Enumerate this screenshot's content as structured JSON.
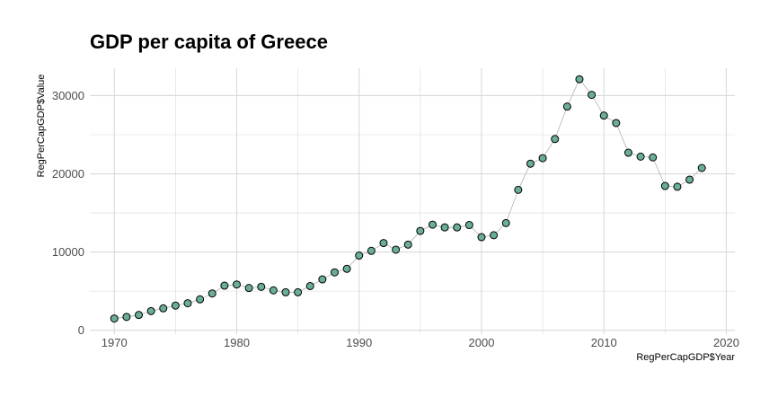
{
  "chart_data": {
    "type": "scatter",
    "title": "GDP per capita of Greece",
    "xlabel": "RegPerCapGDP$Year",
    "ylabel": "RegPerCapGDP$Value",
    "xlim": [
      1968,
      2020.7
    ],
    "ylim": [
      -500,
      33500
    ],
    "x_ticks": [
      1970,
      1980,
      1990,
      2000,
      2010,
      2020
    ],
    "y_ticks": [
      0,
      10000,
      20000,
      30000
    ],
    "x_tick_labels": [
      "1970",
      "1980",
      "1990",
      "2000",
      "2010",
      "2020"
    ],
    "y_tick_labels": [
      "0",
      "10000",
      "20000",
      "30000"
    ],
    "grid": true,
    "connect_points": true,
    "colors": {
      "point_fill": "#6aae96",
      "point_stroke": "#000000",
      "line": "#b3b3b3",
      "grid": "#d9d9d9"
    },
    "points": [
      {
        "x": 1970,
        "y": 1500
      },
      {
        "x": 1971,
        "y": 1700
      },
      {
        "x": 1972,
        "y": 1950
      },
      {
        "x": 1973,
        "y": 2450
      },
      {
        "x": 1974,
        "y": 2800
      },
      {
        "x": 1975,
        "y": 3150
      },
      {
        "x": 1976,
        "y": 3450
      },
      {
        "x": 1977,
        "y": 3950
      },
      {
        "x": 1978,
        "y": 4700
      },
      {
        "x": 1979,
        "y": 5700
      },
      {
        "x": 1980,
        "y": 5850
      },
      {
        "x": 1981,
        "y": 5400
      },
      {
        "x": 1982,
        "y": 5550
      },
      {
        "x": 1983,
        "y": 5100
      },
      {
        "x": 1984,
        "y": 4850
      },
      {
        "x": 1985,
        "y": 4850
      },
      {
        "x": 1986,
        "y": 5650
      },
      {
        "x": 1987,
        "y": 6500
      },
      {
        "x": 1988,
        "y": 7400
      },
      {
        "x": 1989,
        "y": 7850
      },
      {
        "x": 1990,
        "y": 9550
      },
      {
        "x": 1991,
        "y": 10150
      },
      {
        "x": 1992,
        "y": 11150
      },
      {
        "x": 1993,
        "y": 10300
      },
      {
        "x": 1994,
        "y": 10950
      },
      {
        "x": 1995,
        "y": 12700
      },
      {
        "x": 1996,
        "y": 13500
      },
      {
        "x": 1997,
        "y": 13150
      },
      {
        "x": 1998,
        "y": 13150
      },
      {
        "x": 1999,
        "y": 13450
      },
      {
        "x": 2000,
        "y": 11900
      },
      {
        "x": 2001,
        "y": 12150
      },
      {
        "x": 2002,
        "y": 13700
      },
      {
        "x": 2003,
        "y": 17950
      },
      {
        "x": 2004,
        "y": 21300
      },
      {
        "x": 2005,
        "y": 22000
      },
      {
        "x": 2006,
        "y": 24450
      },
      {
        "x": 2007,
        "y": 28600
      },
      {
        "x": 2008,
        "y": 32100
      },
      {
        "x": 2009,
        "y": 30100
      },
      {
        "x": 2010,
        "y": 27450
      },
      {
        "x": 2011,
        "y": 26500
      },
      {
        "x": 2012,
        "y": 22700
      },
      {
        "x": 2013,
        "y": 22200
      },
      {
        "x": 2014,
        "y": 22100
      },
      {
        "x": 2015,
        "y": 18450
      },
      {
        "x": 2016,
        "y": 18350
      },
      {
        "x": 2017,
        "y": 19250
      },
      {
        "x": 2018,
        "y": 20750
      }
    ]
  }
}
